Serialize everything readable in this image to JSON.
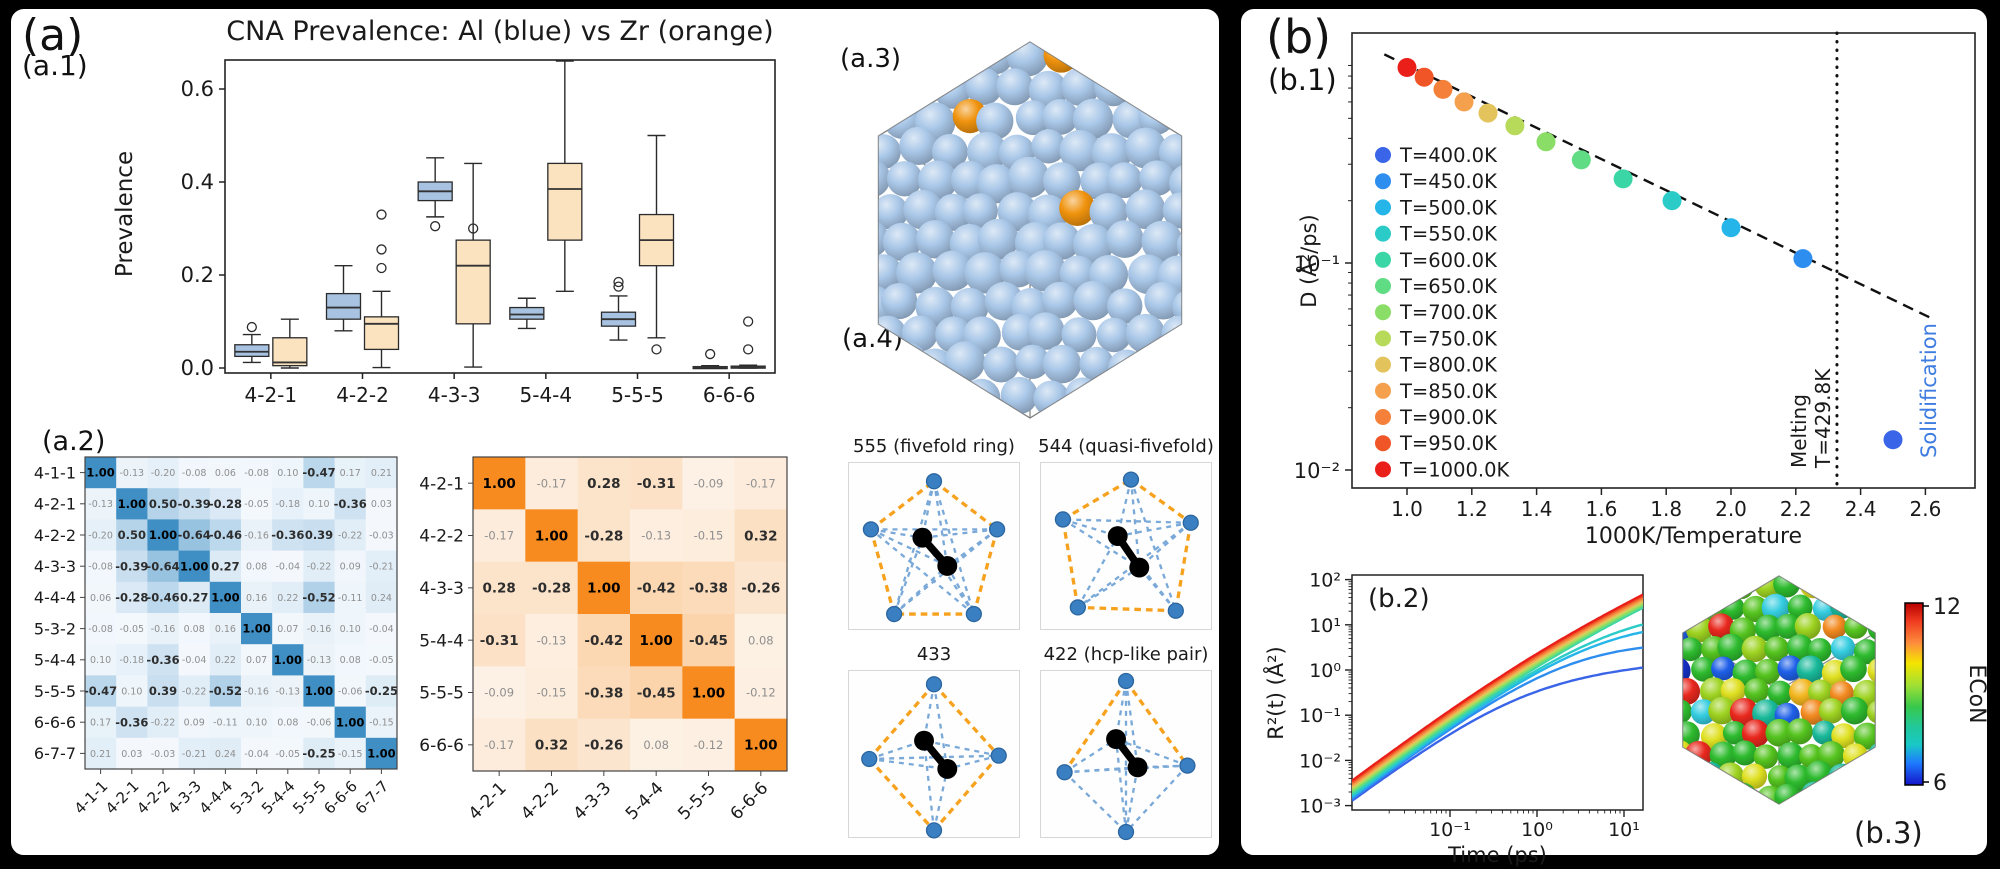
{
  "panels": {
    "a": {
      "label": "(a)",
      "a1": "(a.1)",
      "a2": "(a.2)",
      "a3": "(a.3)",
      "a4": "(a.4)",
      "structure": {
        "atom_color": "#a9c7e8",
        "dopant_color": "#f0930e"
      },
      "motifs": [
        {
          "id": "555",
          "title": "555 (fivefold ring)"
        },
        {
          "id": "544",
          "title": "544 (quasi-fivefold)"
        },
        {
          "id": "433",
          "title": "433"
        },
        {
          "id": "422",
          "title": "422 (hcp-like pair)"
        }
      ]
    },
    "b": {
      "label": "(b)",
      "b1": "(b.1)",
      "b2": "(b.2)",
      "b3": "(b.3)"
    }
  },
  "colors": {
    "al_box": "#a8c3e2",
    "zr_box": "#fbe3c0",
    "motif_node": "#3a7fc1",
    "motif_edge_orange": "#f6a21f",
    "motif_edge_blue": "#7aa9d8",
    "solidification_text": "#3f7de0"
  },
  "chart_data": [
    {
      "id": "cna_boxplot",
      "type": "boxplot",
      "title": "CNA Prevalence: Al (blue) vs Zr (orange)",
      "ylabel": "Prevalence",
      "yticks": [
        0.0,
        0.2,
        0.4,
        0.6
      ],
      "ylim": [
        0,
        0.68
      ],
      "categories": [
        "4-2-1",
        "4-2-2",
        "4-3-3",
        "5-4-4",
        "5-5-5",
        "6-6-6"
      ],
      "series": [
        {
          "name": "Al",
          "color": "#a8c3e2",
          "stats": [
            {
              "whislo": 0.012,
              "q1": 0.025,
              "med": 0.035,
              "q3": 0.05,
              "whishi": 0.072,
              "fliers": [
                0.088
              ]
            },
            {
              "whislo": 0.08,
              "q1": 0.105,
              "med": 0.13,
              "q3": 0.16,
              "whishi": 0.22,
              "fliers": []
            },
            {
              "whislo": 0.325,
              "q1": 0.36,
              "med": 0.38,
              "q3": 0.4,
              "whishi": 0.452,
              "fliers": [
                0.305
              ]
            },
            {
              "whislo": 0.085,
              "q1": 0.105,
              "med": 0.115,
              "q3": 0.13,
              "whishi": 0.15,
              "fliers": []
            },
            {
              "whislo": 0.06,
              "q1": 0.09,
              "med": 0.105,
              "q3": 0.12,
              "whishi": 0.155,
              "fliers": [
                0.175,
                0.185
              ]
            },
            {
              "whislo": 0.0,
              "q1": 0.001,
              "med": 0.002,
              "q3": 0.003,
              "whishi": 0.005,
              "fliers": [
                0.03
              ]
            }
          ]
        },
        {
          "name": "Zr",
          "color": "#fbe3c0",
          "stats": [
            {
              "whislo": 0.0,
              "q1": 0.005,
              "med": 0.012,
              "q3": 0.065,
              "whishi": 0.105,
              "fliers": []
            },
            {
              "whislo": 0.001,
              "q1": 0.04,
              "med": 0.095,
              "q3": 0.11,
              "whishi": 0.165,
              "fliers": [
                0.215,
                0.255,
                0.33
              ]
            },
            {
              "whislo": 0.002,
              "q1": 0.095,
              "med": 0.22,
              "q3": 0.275,
              "whishi": 0.44,
              "fliers": [
                0.3
              ]
            },
            {
              "whislo": 0.165,
              "q1": 0.275,
              "med": 0.385,
              "q3": 0.44,
              "whishi": 0.66,
              "fliers": []
            },
            {
              "whislo": 0.065,
              "q1": 0.22,
              "med": 0.275,
              "q3": 0.33,
              "whishi": 0.5,
              "fliers": [
                0.04
              ]
            },
            {
              "whislo": 0.0,
              "q1": 0.001,
              "med": 0.002,
              "q3": 0.004,
              "whishi": 0.006,
              "fliers": [
                0.04,
                0.1
              ]
            }
          ]
        }
      ]
    },
    {
      "id": "corr_al",
      "type": "heatmap",
      "colormap": "Blues",
      "base_color": "#3f8fc5",
      "light_color": "#f5f9fd",
      "labels": [
        "4-1-1",
        "4-2-1",
        "4-2-2",
        "4-3-3",
        "4-4-4",
        "5-3-2",
        "5-4-4",
        "5-5-5",
        "6-6-6",
        "6-7-7"
      ],
      "matrix": [
        [
          1.0,
          -0.13,
          -0.2,
          -0.08,
          0.06,
          -0.08,
          0.1,
          -0.47,
          0.17,
          0.21
        ],
        [
          -0.13,
          1.0,
          0.5,
          -0.39,
          -0.28,
          -0.05,
          -0.18,
          0.1,
          -0.36,
          0.03
        ],
        [
          -0.2,
          0.5,
          1.0,
          -0.64,
          -0.46,
          -0.16,
          -0.36,
          0.39,
          -0.22,
          -0.03
        ],
        [
          -0.08,
          -0.39,
          -0.64,
          1.0,
          0.27,
          0.08,
          -0.04,
          -0.22,
          0.09,
          -0.21
        ],
        [
          0.06,
          -0.28,
          -0.46,
          0.27,
          1.0,
          0.16,
          0.22,
          -0.52,
          -0.11,
          0.24
        ],
        [
          -0.08,
          -0.05,
          -0.16,
          0.08,
          0.16,
          1.0,
          0.07,
          -0.16,
          0.1,
          -0.04
        ],
        [
          0.1,
          -0.18,
          -0.36,
          -0.04,
          0.22,
          0.07,
          1.0,
          -0.13,
          0.08,
          -0.05
        ],
        [
          -0.47,
          0.1,
          0.39,
          -0.22,
          -0.52,
          -0.16,
          -0.13,
          1.0,
          -0.06,
          -0.25
        ],
        [
          0.17,
          -0.36,
          -0.22,
          0.09,
          -0.11,
          0.1,
          0.08,
          -0.06,
          1.0,
          -0.15
        ],
        [
          0.21,
          0.03,
          -0.03,
          -0.21,
          0.24,
          -0.04,
          -0.05,
          -0.25,
          -0.15,
          1.0
        ]
      ]
    },
    {
      "id": "corr_zr",
      "type": "heatmap",
      "colormap": "Oranges",
      "base_color": "#f78b1f",
      "light_color": "#fdf3e9",
      "labels": [
        "4-2-1",
        "4-2-2",
        "4-3-3",
        "5-4-4",
        "5-5-5",
        "6-6-6"
      ],
      "matrix": [
        [
          1.0,
          -0.17,
          0.28,
          -0.31,
          -0.09,
          -0.17
        ],
        [
          -0.17,
          1.0,
          -0.28,
          -0.13,
          -0.15,
          0.32
        ],
        [
          0.28,
          -0.28,
          1.0,
          -0.42,
          -0.38,
          -0.26
        ],
        [
          -0.31,
          -0.13,
          -0.42,
          1.0,
          -0.45,
          0.08
        ],
        [
          -0.09,
          -0.15,
          -0.38,
          -0.45,
          1.0,
          -0.12
        ],
        [
          -0.17,
          0.32,
          -0.26,
          0.08,
          -0.12,
          1.0
        ]
      ]
    },
    {
      "id": "arrhenius",
      "type": "scatter",
      "xlabel": "1000K/Temperature",
      "ylabel": "D (Å²/ps)",
      "xticks": [
        "1.0",
        "1.2",
        "1.4",
        "1.6",
        "1.8",
        "2.0",
        "2.2",
        "2.4",
        "2.6"
      ],
      "xtick_values": [
        1.0,
        1.2,
        1.4,
        1.6,
        1.8,
        2.0,
        2.2,
        2.4,
        2.6
      ],
      "yticks": [
        {
          "value": 0.1,
          "label": "10⁻¹"
        },
        {
          "value": 0.01,
          "label": "10⁻²"
        }
      ],
      "series": [
        {
          "temperature": 400,
          "legend": "T=400.0K",
          "color": "#3a65e8",
          "inv_t": 2.5,
          "D": 0.014
        },
        {
          "temperature": 450,
          "legend": "T=450.0K",
          "color": "#2e8ef0",
          "inv_t": 2.222,
          "D": 0.105
        },
        {
          "temperature": 500,
          "legend": "T=500.0K",
          "color": "#25b5e8",
          "inv_t": 2.0,
          "D": 0.148
        },
        {
          "temperature": 550,
          "legend": "T=550.0K",
          "color": "#2bcbc8",
          "inv_t": 1.818,
          "D": 0.2
        },
        {
          "temperature": 600,
          "legend": "T=600.0K",
          "color": "#3bd6a5",
          "inv_t": 1.667,
          "D": 0.255
        },
        {
          "temperature": 650,
          "legend": "T=650.0K",
          "color": "#5fdc84",
          "inv_t": 1.538,
          "D": 0.315
        },
        {
          "temperature": 700,
          "legend": "T=700.0K",
          "color": "#8ade67",
          "inv_t": 1.429,
          "D": 0.385
        },
        {
          "temperature": 750,
          "legend": "T=750.0K",
          "color": "#b8da5b",
          "inv_t": 1.333,
          "D": 0.46
        },
        {
          "temperature": 800,
          "legend": "T=800.0K",
          "color": "#e3c45c",
          "inv_t": 1.25,
          "D": 0.53
        },
        {
          "temperature": 850,
          "legend": "T=850.0K",
          "color": "#f5a04c",
          "inv_t": 1.176,
          "D": 0.6
        },
        {
          "temperature": 900,
          "legend": "T=900.0K",
          "color": "#f5803a",
          "inv_t": 1.111,
          "D": 0.69
        },
        {
          "temperature": 950,
          "legend": "T=950.0K",
          "color": "#f05527",
          "inv_t": 1.053,
          "D": 0.79
        },
        {
          "temperature": 1000,
          "legend": "T=1000.0K",
          "color": "#ea1f1a",
          "inv_t": 1.0,
          "D": 0.88
        }
      ],
      "fit_line": {
        "t_start": 0.93,
        "t_end": 2.63,
        "log10_intercept": 0.71,
        "slope": -0.755
      },
      "melting": {
        "inv_t": 2.327,
        "line1": "Melting",
        "line2": "T=429.8K"
      },
      "solidification_label": "Solidification"
    },
    {
      "id": "msd",
      "type": "line",
      "xlabel": "Time (ps)",
      "ylabel": "R²(t) (Å²)",
      "xticks": [
        {
          "value": 0.1,
          "label": "10⁻¹"
        },
        {
          "value": 1,
          "label": "10⁰"
        },
        {
          "value": 10,
          "label": "10¹"
        }
      ],
      "yticks": [
        {
          "value": 100,
          "label": "10²"
        },
        {
          "value": 10,
          "label": "10¹"
        },
        {
          "value": 1,
          "label": "10⁰"
        },
        {
          "value": 0.1,
          "label": "10⁻¹"
        },
        {
          "value": 0.01,
          "label": "10⁻²"
        },
        {
          "value": 0.001,
          "label": "10⁻³"
        }
      ],
      "t_range": [
        0.0075,
        16.5
      ],
      "model": {
        "p1": 1.45,
        "t_half": 0.96,
        "p2": 0.55
      },
      "curves": [
        {
          "temperature": 400,
          "color": "#3a65e8",
          "amp": 1.7,
          "plateau_t": 0.6,
          "plateau_q": 0.8
        },
        {
          "temperature": 450,
          "color": "#2e8ef0",
          "amp": 1.85,
          "plateau_t": 2.8,
          "plateau_q": 0.9
        },
        {
          "temperature": 500,
          "color": "#25b5e8",
          "amp": 2.01,
          "plateau_t": 8.0,
          "plateau_q": 0.9
        },
        {
          "temperature": 550,
          "color": "#2bcbc8",
          "amp": 2.18,
          "plateau_t": 14.0,
          "plateau_q": 0.9
        },
        {
          "temperature": 600,
          "color": "#3bd6a5",
          "amp": 2.37,
          "plateau_t": null,
          "plateau_q": null
        },
        {
          "temperature": 650,
          "color": "#5fdc84",
          "amp": 2.58,
          "plateau_t": null,
          "plateau_q": null
        },
        {
          "temperature": 700,
          "color": "#8ade67",
          "amp": 2.8,
          "plateau_t": null,
          "plateau_q": null
        },
        {
          "temperature": 750,
          "color": "#b8da5b",
          "amp": 3.04,
          "plateau_t": null,
          "plateau_q": null
        },
        {
          "temperature": 800,
          "color": "#e3c45c",
          "amp": 3.3,
          "plateau_t": null,
          "plateau_q": null
        },
        {
          "temperature": 850,
          "color": "#f5a04c",
          "amp": 3.59,
          "plateau_t": null,
          "plateau_q": null
        },
        {
          "temperature": 900,
          "color": "#f5803a",
          "amp": 3.9,
          "plateau_t": null,
          "plateau_q": null
        },
        {
          "temperature": 950,
          "color": "#f05527",
          "amp": 4.24,
          "plateau_t": null,
          "plateau_q": null
        },
        {
          "temperature": 1000,
          "color": "#ea1f1a",
          "amp": 4.61,
          "plateau_t": null,
          "plateau_q": null
        }
      ]
    },
    {
      "id": "econ",
      "type": "3d-atoms",
      "colorbar": {
        "label": "ECoN",
        "max_label": "12",
        "min_label": "6"
      },
      "palette": [
        {
          "color": "#2ebb2e",
          "w": 26
        },
        {
          "color": "#55c41f",
          "w": 16
        },
        {
          "color": "#9ed321",
          "w": 13
        },
        {
          "color": "#dfe021",
          "w": 10
        },
        {
          "color": "#f2b61e",
          "w": 4
        },
        {
          "color": "#f28a20",
          "w": 6
        },
        {
          "color": "#e8281e",
          "w": 3
        },
        {
          "color": "#35cde0",
          "w": 6
        },
        {
          "color": "#19b99a",
          "w": 9
        },
        {
          "color": "#1f60e8",
          "w": 3
        },
        {
          "color": "#1430c8",
          "w": 2
        }
      ]
    }
  ]
}
